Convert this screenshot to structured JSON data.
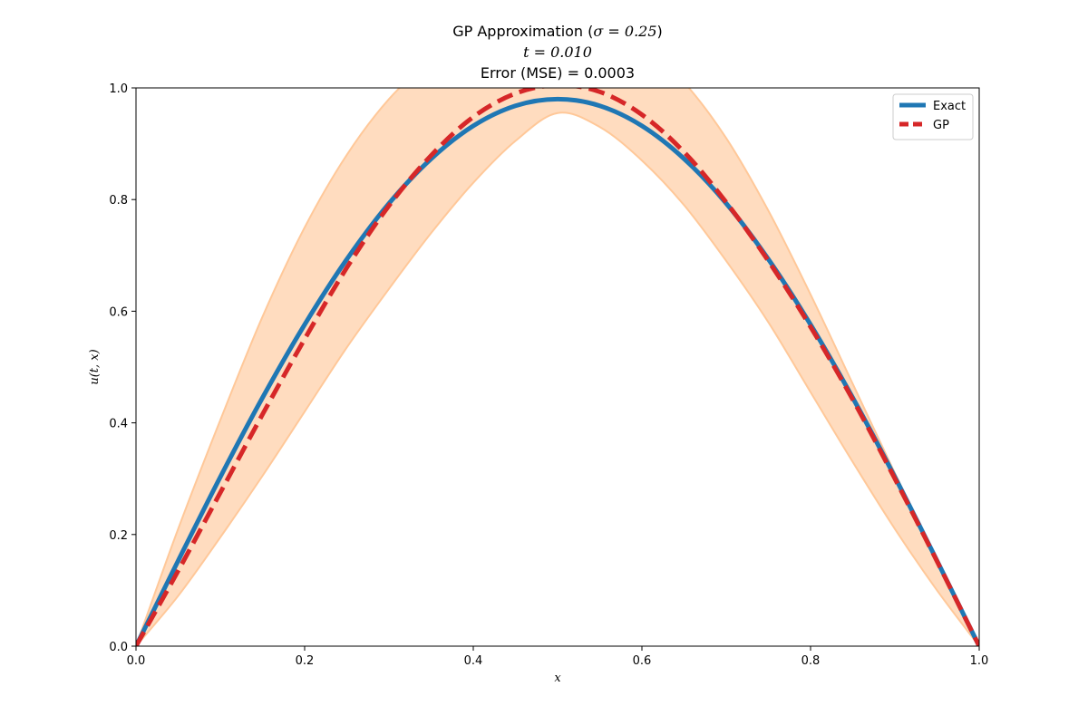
{
  "chart_data": {
    "type": "line",
    "title": {
      "line1_prefix": "GP Approximation (",
      "line1_math": "σ = 0.25",
      "line1_suffix": ")",
      "line2_math": "t = 0.010",
      "line3": "Error (MSE) = 0.0003"
    },
    "xlabel": "x",
    "ylabel": "u(t, x)",
    "xlim": [
      0.0,
      1.0
    ],
    "ylim": [
      0.0,
      1.0
    ],
    "xticks": [
      "0.0",
      "0.2",
      "0.4",
      "0.6",
      "0.8",
      "1.0"
    ],
    "yticks": [
      "0.0",
      "0.2",
      "0.4",
      "0.6",
      "0.8",
      "1.0"
    ],
    "grid": false,
    "legend_position": "top-right",
    "x": [
      0.0,
      0.05,
      0.1,
      0.15,
      0.2,
      0.25,
      0.3,
      0.35,
      0.4,
      0.45,
      0.5,
      0.55,
      0.6,
      0.65,
      0.7,
      0.75,
      0.8,
      0.85,
      0.9,
      0.95,
      1.0
    ],
    "series": [
      {
        "name": "Exact",
        "style": "solid",
        "color": "#1f77b4",
        "values": [
          0.0,
          0.153,
          0.303,
          0.445,
          0.576,
          0.693,
          0.793,
          0.873,
          0.932,
          0.968,
          0.98,
          0.968,
          0.932,
          0.873,
          0.793,
          0.693,
          0.576,
          0.445,
          0.303,
          0.153,
          0.0
        ]
      },
      {
        "name": "GP",
        "style": "dashed",
        "color": "#d62728",
        "values": [
          0.0,
          0.135,
          0.275,
          0.415,
          0.55,
          0.678,
          0.789,
          0.879,
          0.948,
          0.99,
          1.005,
          0.993,
          0.952,
          0.885,
          0.795,
          0.69,
          0.572,
          0.442,
          0.3,
          0.152,
          0.0
        ]
      }
    ],
    "confidence_band": {
      "color": "#ffd8b8",
      "edge_color": "#ffc899",
      "upper": [
        0.0,
        0.21,
        0.405,
        0.59,
        0.75,
        0.88,
        0.98,
        1.05,
        1.1,
        1.12,
        1.125,
        1.115,
        1.08,
        1.01,
        0.91,
        0.78,
        0.63,
        0.47,
        0.31,
        0.155,
        0.0
      ],
      "lower": [
        0.0,
        0.09,
        0.195,
        0.305,
        0.42,
        0.535,
        0.64,
        0.74,
        0.83,
        0.905,
        0.955,
        0.93,
        0.87,
        0.79,
        0.69,
        0.58,
        0.455,
        0.33,
        0.21,
        0.1,
        0.0
      ]
    }
  }
}
